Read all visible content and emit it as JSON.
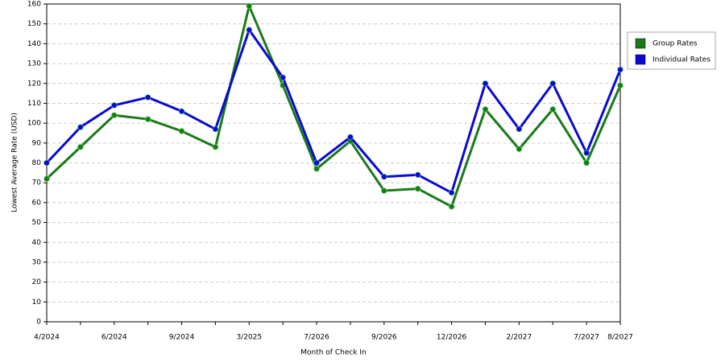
{
  "chart_data": {
    "type": "line",
    "x_label": "Month of Check In",
    "y_label": "Lowest Average Rate (USD)",
    "categories": [
      "4/2024",
      null,
      "6/2024",
      null,
      "9/2024",
      null,
      "3/2025",
      null,
      "7/2026",
      null,
      "9/2026",
      null,
      "12/2026",
      null,
      "2/2027",
      null,
      "7/2027",
      "8/2027"
    ],
    "series": [
      {
        "name": "Group Rates",
        "color": "#1a7a1a",
        "values": [
          72,
          88,
          104,
          102,
          96,
          88,
          159,
          119,
          77,
          91,
          66,
          67,
          58,
          107,
          87,
          107,
          80,
          119
        ]
      },
      {
        "name": "Individual Rates",
        "color": "#0a0ad0",
        "values": [
          80,
          98,
          109,
          113,
          106,
          97,
          147,
          123,
          80,
          93,
          73,
          74,
          65,
          120,
          97,
          120,
          85,
          127
        ]
      }
    ],
    "ylim": [
      0,
      160
    ],
    "yticks": [
      0,
      10,
      20,
      30,
      40,
      50,
      60,
      70,
      80,
      90,
      100,
      110,
      120,
      130,
      140,
      150,
      160
    ],
    "grid": true,
    "legend": "right"
  }
}
